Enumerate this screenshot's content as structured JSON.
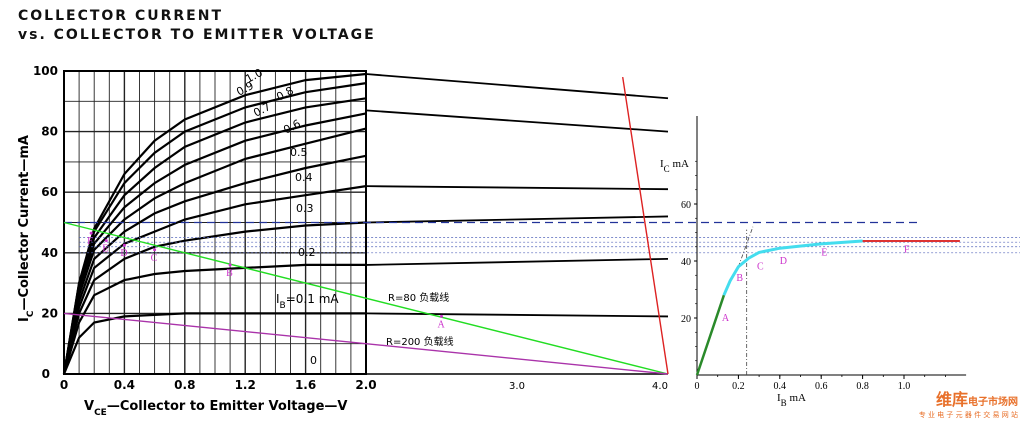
{
  "title_line1": "COLLECTOR CURRENT",
  "title_line2": "vs. COLLECTOR TO EMITTER VOLTAGE",
  "chart_data": [
    {
      "type": "line",
      "xlabel_main": "V",
      "xlabel_sub": "CE",
      "xlabel_rest": "—Collector to Emitter Voltage—V",
      "ylabel_main": "I",
      "ylabel_sub": "C",
      "ylabel_rest": "—Collector Current—mA",
      "x_ticks": [
        "0",
        "0.4",
        "0.8",
        "1.2",
        "1.6",
        "2.0"
      ],
      "x_ticks_ext": [
        "3.0",
        "4.0"
      ],
      "y_ticks": [
        "0",
        "20",
        "40",
        "60",
        "80",
        "100"
      ],
      "xlim": [
        0,
        2.0
      ],
      "ylim": [
        0,
        100
      ],
      "curve_labels": [
        "1.0",
        "0.9",
        "0.8",
        "0.7",
        "0.6",
        "0.5",
        "0.4",
        "0.3",
        "0.2",
        "0"
      ],
      "ib_label_main": "I",
      "ib_label_sub": "B",
      "ib_label_rest": "=0.1 mA",
      "series": [
        {
          "name": "1.0",
          "values": [
            [
              0,
              0
            ],
            [
              0.1,
              30
            ],
            [
              0.2,
              48
            ],
            [
              0.4,
              66
            ],
            [
              0.6,
              77
            ],
            [
              0.8,
              84
            ],
            [
              1.2,
              92
            ],
            [
              1.6,
              97
            ],
            [
              2.0,
              99
            ]
          ]
        },
        {
          "name": "0.9",
          "values": [
            [
              0,
              0
            ],
            [
              0.1,
              30
            ],
            [
              0.2,
              47
            ],
            [
              0.4,
              63
            ],
            [
              0.6,
              73
            ],
            [
              0.8,
              80
            ],
            [
              1.2,
              88
            ],
            [
              1.6,
              93
            ],
            [
              2.0,
              96
            ]
          ]
        },
        {
          "name": "0.8",
          "values": [
            [
              0,
              0
            ],
            [
              0.1,
              29
            ],
            [
              0.2,
              45
            ],
            [
              0.4,
              59
            ],
            [
              0.6,
              68
            ],
            [
              0.8,
              75
            ],
            [
              1.2,
              83
            ],
            [
              1.6,
              88
            ],
            [
              2.0,
              91
            ]
          ]
        },
        {
          "name": "0.7",
          "values": [
            [
              0,
              0
            ],
            [
              0.1,
              28
            ],
            [
              0.2,
              43
            ],
            [
              0.4,
              55
            ],
            [
              0.6,
              63
            ],
            [
              0.8,
              69
            ],
            [
              1.2,
              77
            ],
            [
              1.6,
              82
            ],
            [
              2.0,
              86
            ]
          ]
        },
        {
          "name": "0.6",
          "values": [
            [
              0,
              0
            ],
            [
              0.1,
              26
            ],
            [
              0.2,
              41
            ],
            [
              0.4,
              51
            ],
            [
              0.6,
              58
            ],
            [
              0.8,
              63
            ],
            [
              1.2,
              71
            ],
            [
              1.6,
              76
            ],
            [
              2.0,
              81
            ]
          ]
        },
        {
          "name": "0.5",
          "values": [
            [
              0,
              0
            ],
            [
              0.1,
              24
            ],
            [
              0.2,
              38
            ],
            [
              0.4,
              47
            ],
            [
              0.6,
              53
            ],
            [
              0.8,
              57
            ],
            [
              1.2,
              63
            ],
            [
              1.6,
              68
            ],
            [
              2.0,
              72
            ]
          ]
        },
        {
          "name": "0.4",
          "values": [
            [
              0,
              0
            ],
            [
              0.1,
              22
            ],
            [
              0.2,
              35
            ],
            [
              0.4,
              43
            ],
            [
              0.6,
              47
            ],
            [
              0.8,
              51
            ],
            [
              1.2,
              56
            ],
            [
              1.6,
              59
            ],
            [
              2.0,
              62
            ]
          ]
        },
        {
          "name": "0.3",
          "values": [
            [
              0,
              0
            ],
            [
              0.1,
              20
            ],
            [
              0.2,
              31
            ],
            [
              0.4,
              38
            ],
            [
              0.6,
              42
            ],
            [
              0.8,
              44
            ],
            [
              1.2,
              47
            ],
            [
              1.6,
              49
            ],
            [
              2.0,
              50
            ]
          ]
        },
        {
          "name": "0.2",
          "values": [
            [
              0,
              0
            ],
            [
              0.1,
              17
            ],
            [
              0.2,
              26
            ],
            [
              0.4,
              31
            ],
            [
              0.6,
              33
            ],
            [
              0.8,
              34
            ],
            [
              1.2,
              35
            ],
            [
              1.6,
              36
            ],
            [
              2.0,
              36
            ]
          ]
        },
        {
          "name": "0.1",
          "values": [
            [
              0,
              0
            ],
            [
              0.1,
              12
            ],
            [
              0.2,
              17
            ],
            [
              0.4,
              19
            ],
            [
              0.6,
              19.5
            ],
            [
              0.8,
              20
            ],
            [
              1.2,
              20
            ],
            [
              1.6,
              20
            ],
            [
              2.0,
              20
            ]
          ]
        }
      ],
      "ext_lines": [
        [
          2.0,
          99,
          4.0,
          91
        ],
        [
          2.0,
          87,
          4.0,
          80
        ],
        [
          2.0,
          62,
          4.0,
          61
        ],
        [
          2.0,
          50,
          4.0,
          52
        ],
        [
          2.0,
          36,
          4.0,
          38
        ],
        [
          2.0,
          20,
          4.0,
          19
        ]
      ],
      "load_lines": [
        {
          "name": "R=80 负载线",
          "color": "#22dd22",
          "points": [
            [
              0,
              50
            ],
            [
              4.0,
              0
            ]
          ]
        },
        {
          "name": "R=200 负载线",
          "color": "#aa33aa",
          "points": [
            [
              0,
              20
            ],
            [
              4.0,
              0
            ]
          ]
        }
      ],
      "red_line": {
        "color": "#dd2222",
        "points": [
          [
            3.7,
            98
          ],
          [
            4.0,
            0
          ]
        ]
      },
      "dashed_y": [
        50,
        45,
        43.5,
        42,
        40
      ],
      "points": [
        {
          "label": "A",
          "x": 2.5,
          "y": 19
        },
        {
          "label": "B",
          "x": 1.1,
          "y": 36
        },
        {
          "label": "C",
          "x": 0.6,
          "y": 41
        },
        {
          "label": "D",
          "x": 0.4,
          "y": 42.5
        },
        {
          "label": "E",
          "x": 0.28,
          "y": 44
        },
        {
          "label": "F",
          "x": 0.18,
          "y": 46.5
        }
      ]
    },
    {
      "type": "line",
      "xlabel_main": "I",
      "xlabel_sub": "B",
      "xlabel_rest": "mA",
      "ylabel_main": "I",
      "ylabel_sub": "C",
      "ylabel_rest": "mA",
      "x_ticks": [
        "0",
        "0.2",
        "0.4",
        "0.6",
        "0.8",
        "1.0"
      ],
      "y_ticks": [
        "20",
        "40",
        "60"
      ],
      "xlim": [
        0,
        1.3
      ],
      "ylim": [
        0,
        80
      ],
      "green": [
        [
          0,
          0
        ],
        [
          0.13,
          28
        ]
      ],
      "cyan": [
        [
          0.13,
          28
        ],
        [
          0.16,
          33
        ],
        [
          0.2,
          38
        ],
        [
          0.25,
          41
        ],
        [
          0.3,
          43
        ],
        [
          0.4,
          44.5
        ],
        [
          0.6,
          46
        ],
        [
          0.8,
          47
        ]
      ],
      "red": [
        [
          0.8,
          47
        ],
        [
          1.27,
          47
        ]
      ],
      "points": [
        {
          "label": "A",
          "x": 0.12,
          "y": 19
        },
        {
          "label": "B",
          "x": 0.19,
          "y": 33
        },
        {
          "label": "C",
          "x": 0.29,
          "y": 37
        },
        {
          "label": "D",
          "x": 0.4,
          "y": 39
        },
        {
          "label": "E",
          "x": 0.6,
          "y": 42
        },
        {
          "label": "F",
          "x": 1.0,
          "y": 43
        }
      ],
      "dashed_y": [
        50,
        47,
        45,
        44,
        43,
        42,
        41,
        40,
        38
      ],
      "asymptote_x": 0.24
    }
  ],
  "watermark_main": "维库",
  "watermark_sub": "电子市场网",
  "watermark_line2": "专 业 电 子 元 器 件 交 易 网 站"
}
